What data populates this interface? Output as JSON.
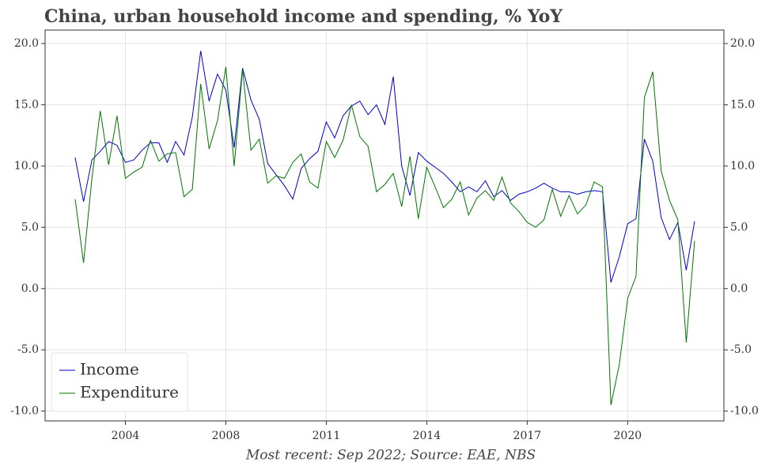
{
  "chart_data": {
    "type": "line",
    "title": "China, urban household income and spending, % YoY",
    "source": "Most recent: Sep 2022; Source: EAE, NBS",
    "categories": [
      null,
      null,
      null,
      null,
      null,
      null,
      "2004",
      null,
      null,
      null,
      null,
      null,
      null,
      null,
      null,
      null,
      null,
      null,
      "2008",
      null,
      null,
      null,
      null,
      null,
      null,
      null,
      null,
      null,
      null,
      null,
      "2011",
      null,
      null,
      null,
      null,
      null,
      null,
      null,
      null,
      null,
      null,
      null,
      "2014",
      null,
      null,
      null,
      null,
      null,
      null,
      null,
      null,
      null,
      null,
      null,
      "2017",
      null,
      null,
      null,
      null,
      null,
      null,
      null,
      null,
      null,
      null,
      null,
      "2020",
      null,
      null,
      null,
      null,
      null,
      null,
      null,
      null
    ],
    "series": [
      {
        "name": "Income",
        "color": "#0000cc",
        "values": [
          10.7,
          7.1,
          10.5,
          11.2,
          12.0,
          11.7,
          10.3,
          10.5,
          11.3,
          11.9,
          11.9,
          10.3,
          12.0,
          10.9,
          14.0,
          19.4,
          15.3,
          17.5,
          16.2,
          11.5,
          18.0,
          15.4,
          13.8,
          10.2,
          9.3,
          8.4,
          7.3,
          9.8,
          10.6,
          11.2,
          13.6,
          12.3,
          14.1,
          14.9,
          15.3,
          14.2,
          15.0,
          13.4,
          17.3,
          10.0,
          7.6,
          11.1,
          10.4,
          9.9,
          9.4,
          8.7,
          7.9,
          8.3,
          7.9,
          8.8,
          7.5,
          8.0,
          7.2,
          7.7,
          7.9,
          8.2,
          8.6,
          8.2,
          7.9,
          7.9,
          7.7,
          7.9,
          8.0,
          7.9,
          0.5,
          2.6,
          5.3,
          5.7,
          12.2,
          10.4,
          5.8,
          4.0,
          5.4,
          1.5,
          5.5
        ]
      },
      {
        "name": "Expenditure",
        "color": "#007700",
        "values": [
          7.3,
          2.1,
          9.0,
          14.5,
          10.1,
          14.1,
          9.0,
          9.5,
          9.9,
          12.1,
          10.4,
          11.0,
          11.1,
          7.5,
          8.1,
          16.7,
          11.4,
          13.7,
          18.1,
          10.0,
          17.9,
          11.3,
          12.2,
          8.6,
          9.2,
          9.0,
          10.3,
          11.0,
          8.7,
          8.2,
          12.0,
          10.7,
          12.1,
          15.0,
          12.4,
          11.6,
          7.9,
          8.5,
          9.4,
          6.7,
          10.8,
          5.7,
          9.9,
          8.3,
          6.6,
          7.3,
          8.7,
          6.0,
          7.4,
          8.0,
          7.2,
          9.1,
          7.0,
          6.3,
          5.4,
          5.0,
          5.6,
          8.1,
          5.9,
          7.6,
          6.1,
          6.8,
          8.7,
          8.3,
          -9.5,
          -6.2,
          -0.8,
          1.0,
          15.6,
          17.7,
          9.6,
          7.2,
          5.6,
          -4.4,
          3.9
        ]
      }
    ],
    "ylim": [
      -10.8,
      21.1
    ],
    "yticks": [
      {
        "value": -10,
        "label": "-10.0"
      },
      {
        "value": -5,
        "label": "-5.0"
      },
      {
        "value": 0,
        "label": "0.0"
      },
      {
        "value": 5,
        "label": "5.0"
      },
      {
        "value": 10,
        "label": "10.0"
      },
      {
        "value": 15,
        "label": "15.0"
      },
      {
        "value": 20,
        "label": "20.0"
      }
    ],
    "y2lim": [
      -10.8,
      21.1
    ],
    "y2ticks": [
      {
        "value": -10,
        "label": "-10.0"
      },
      {
        "value": -5,
        "label": "-5.0"
      },
      {
        "value": 0,
        "label": "0.0"
      },
      {
        "value": 5,
        "label": "5.0"
      },
      {
        "value": 10,
        "label": "10.0"
      },
      {
        "value": 15,
        "label": "15.0"
      },
      {
        "value": 20,
        "label": "20.0"
      }
    ],
    "grid": true,
    "legend": "lower left"
  }
}
